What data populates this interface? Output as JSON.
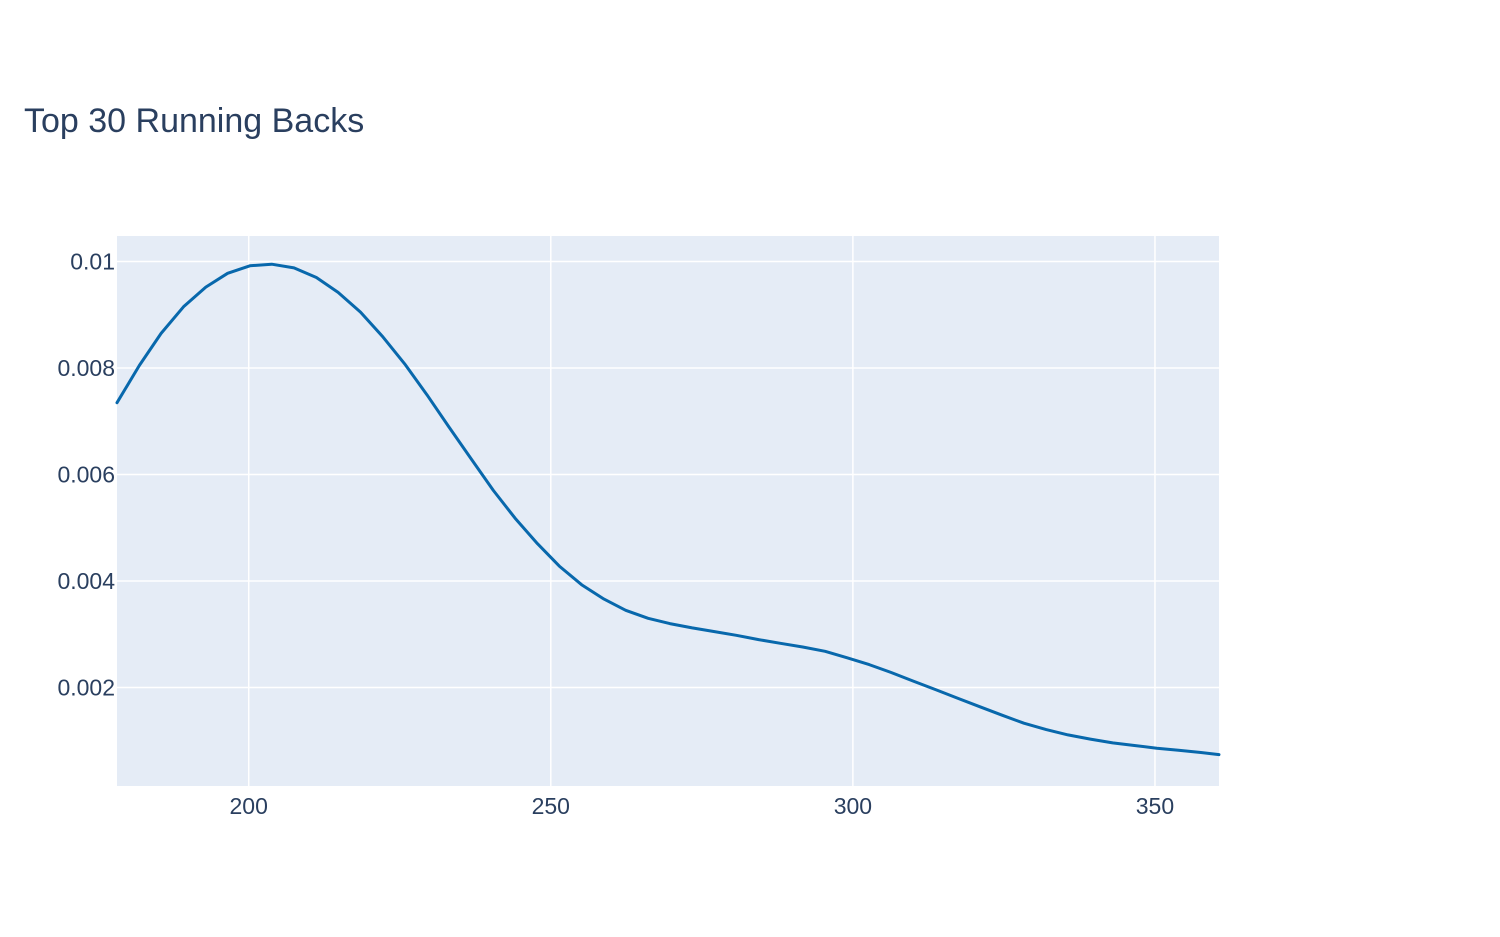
{
  "chart_data": {
    "type": "line",
    "title": "Top 30 Running Backs",
    "xlabel": "",
    "ylabel": "",
    "xlim": [
      178.2,
      360.6
    ],
    "ylim": [
      0.00015,
      0.01048
    ],
    "x_ticks": [
      200,
      250,
      300,
      350
    ],
    "x_tick_labels": [
      "200",
      "250",
      "300",
      "350"
    ],
    "y_ticks": [
      0.002,
      0.004,
      0.006,
      0.008,
      0.01
    ],
    "y_tick_labels": [
      "0.002",
      "0.004",
      "0.006",
      "0.008",
      "0.01"
    ],
    "grid": true,
    "legend": "none",
    "colors": {
      "plot_background": "#e5ecf6",
      "grid": "#ffffff",
      "line": "#0868ac",
      "text": "#2a3f5f"
    },
    "series": [
      {
        "x": [
          178.2,
          181.9,
          185.5,
          189.2,
          192.9,
          196.5,
          200.2,
          203.8,
          207.5,
          211.2,
          214.8,
          218.5,
          222.1,
          225.8,
          229.5,
          233.1,
          236.8,
          240.5,
          244.1,
          247.8,
          251.4,
          255.1,
          258.8,
          262.4,
          266.1,
          269.7,
          273.4,
          277.1,
          280.7,
          284.4,
          288.0,
          291.7,
          295.4,
          299.0,
          302.7,
          306.4,
          310.0,
          313.7,
          317.3,
          321.0,
          324.7,
          328.3,
          332.0,
          335.6,
          339.3,
          343.0,
          346.6,
          350.3,
          353.9,
          357.6,
          360.6
        ],
        "y": [
          0.00735,
          0.00805,
          0.00865,
          0.00915,
          0.00952,
          0.00978,
          0.00992,
          0.00995,
          0.00988,
          0.0097,
          0.00942,
          0.00905,
          0.0086,
          0.00808,
          0.0075,
          0.0069,
          0.0063,
          0.0057,
          0.00518,
          0.0047,
          0.00428,
          0.00393,
          0.00366,
          0.00345,
          0.0033,
          0.0032,
          0.00312,
          0.00305,
          0.00298,
          0.0029,
          0.00283,
          0.00276,
          0.00268,
          0.00256,
          0.00243,
          0.00228,
          0.00212,
          0.00196,
          0.0018,
          0.00164,
          0.00148,
          0.00133,
          0.00121,
          0.00111,
          0.00103,
          0.00096,
          0.00091,
          0.00086,
          0.00082,
          0.00078,
          0.00074
        ]
      }
    ]
  }
}
